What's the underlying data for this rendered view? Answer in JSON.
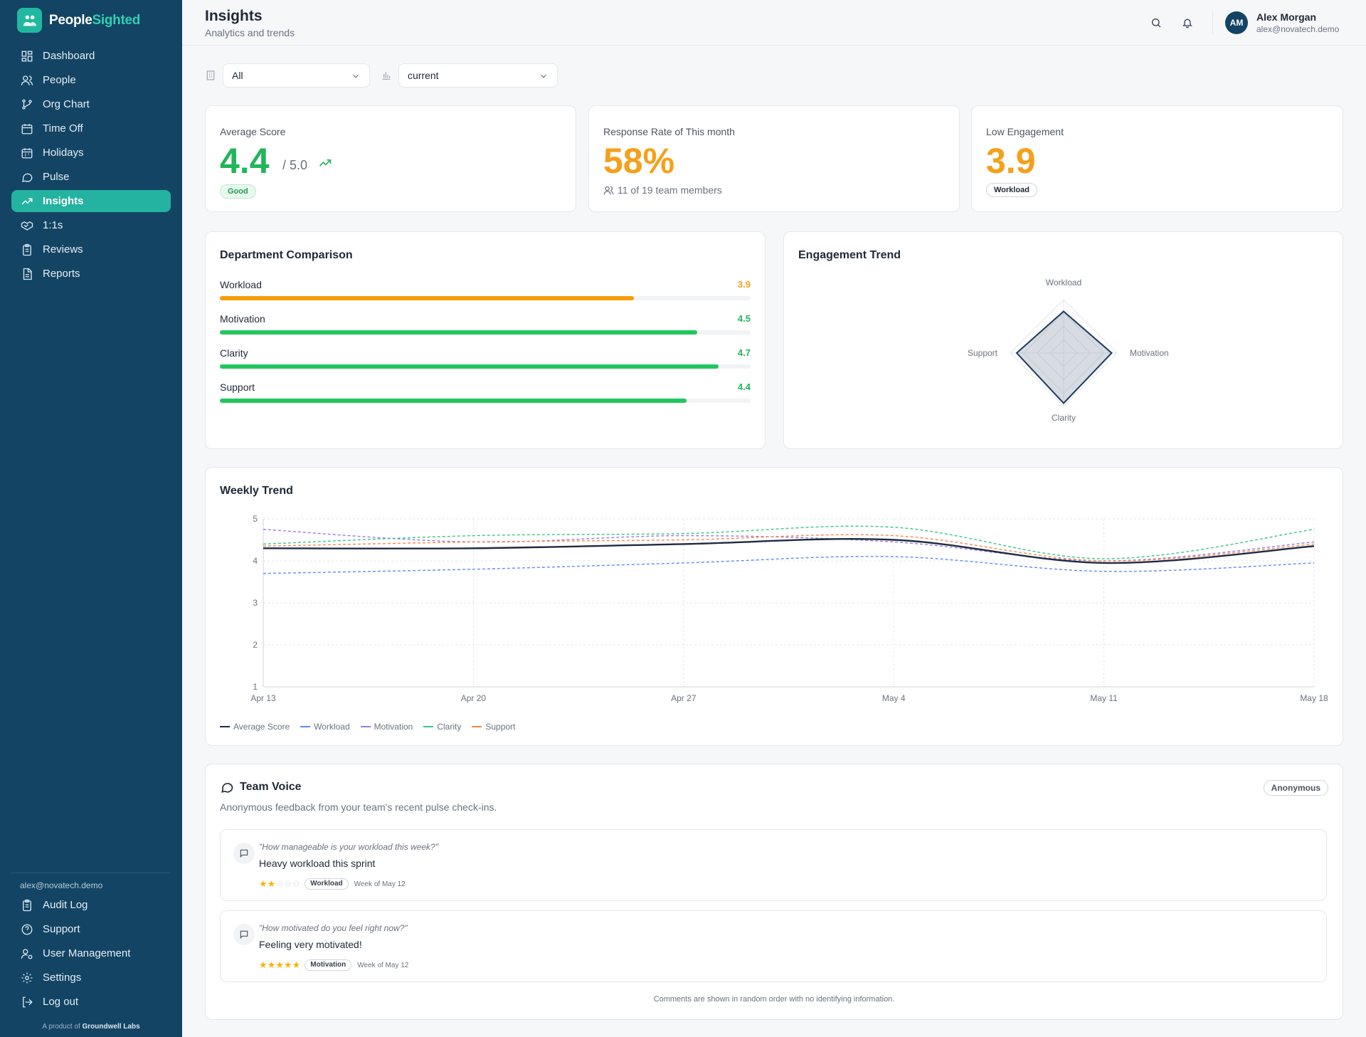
{
  "brand": {
    "name_a": "People",
    "name_b": "Sighted"
  },
  "colors": {
    "sidebar": "#134464",
    "accent": "#24b3a0",
    "green": "#22c55e",
    "orange": "#f59e0b",
    "navy": "#1e2a44"
  },
  "nav": {
    "items": [
      {
        "label": "Dashboard",
        "icon": "dashboard-icon"
      },
      {
        "label": "People",
        "icon": "people-icon"
      },
      {
        "label": "Org Chart",
        "icon": "org-chart-icon"
      },
      {
        "label": "Time Off",
        "icon": "calendar-icon"
      },
      {
        "label": "Holidays",
        "icon": "calendar-icon"
      },
      {
        "label": "Pulse",
        "icon": "chat-icon"
      },
      {
        "label": "Insights",
        "icon": "trending-up-icon",
        "active": true
      },
      {
        "label": "1:1s",
        "icon": "handshake-icon"
      },
      {
        "label": "Reviews",
        "icon": "clipboard-icon"
      },
      {
        "label": "Reports",
        "icon": "report-icon"
      }
    ],
    "account_email": "alex@novatech.demo",
    "bottom": [
      {
        "label": "Audit Log",
        "icon": "clipboard-icon"
      },
      {
        "label": "Support",
        "icon": "help-icon"
      },
      {
        "label": "User Management",
        "icon": "user-gear-icon"
      },
      {
        "label": "Settings",
        "icon": "gear-icon"
      },
      {
        "label": "Log out",
        "icon": "logout-icon"
      }
    ],
    "product_note_prefix": "A product of",
    "product_note_company": "Groundwell Labs"
  },
  "header": {
    "title": "Insights",
    "subtitle": "Analytics and trends",
    "user": {
      "initials": "AM",
      "name": "Alex Morgan",
      "email": "alex@novatech.demo"
    }
  },
  "filters": {
    "department": "All",
    "period": "current"
  },
  "kpis": {
    "average": {
      "label": "Average Score",
      "value": "4.4",
      "suffix": "/ 5.0",
      "badge": "Good"
    },
    "response": {
      "label": "Response Rate of This month",
      "value": "58%",
      "detail": "11 of 19 team members"
    },
    "low": {
      "label": "Low Engagement",
      "value": "3.9",
      "badge": "Workload"
    }
  },
  "department_comparison": {
    "title": "Department Comparison",
    "items": [
      {
        "label": "Workload",
        "value": "3.9",
        "score": 3.9,
        "color": "#f59e0b"
      },
      {
        "label": "Motivation",
        "value": "4.5",
        "score": 4.5,
        "color": "#22c55e"
      },
      {
        "label": "Clarity",
        "value": "4.7",
        "score": 4.7,
        "color": "#22c55e"
      },
      {
        "label": "Support",
        "value": "4.4",
        "score": 4.4,
        "color": "#22c55e"
      }
    ]
  },
  "engagement_trend": {
    "title": "Engagement Trend",
    "axes": [
      "Workload",
      "Motivation",
      "Clarity",
      "Support"
    ],
    "values": [
      3.9,
      4.5,
      4.7,
      4.4
    ],
    "max": 5
  },
  "weekly_trend": {
    "title": "Weekly Trend"
  },
  "chart_data": {
    "type": "line",
    "title": "Weekly Trend",
    "x": [
      "Apr 13",
      "Apr 20",
      "Apr 27",
      "May 4",
      "May 11",
      "May 18"
    ],
    "yticks": [
      "1",
      "2",
      "3",
      "4",
      "5"
    ],
    "ylim": [
      1,
      5
    ],
    "grid": true,
    "legend": "bottom-left",
    "series": [
      {
        "name": "Average Score",
        "values": [
          4.3,
          4.3,
          4.4,
          4.5,
          3.95,
          4.35
        ],
        "color": "#1e2a44",
        "dashed": false
      },
      {
        "name": "Workload",
        "values": [
          3.7,
          3.8,
          3.95,
          4.1,
          3.75,
          3.95
        ],
        "color": "#5b8def",
        "dashed": true
      },
      {
        "name": "Motivation",
        "values": [
          4.75,
          4.45,
          4.6,
          4.45,
          4.0,
          4.45
        ],
        "color": "#9b7be0",
        "dashed": true
      },
      {
        "name": "Clarity",
        "values": [
          4.4,
          4.6,
          4.65,
          4.8,
          4.05,
          4.75
        ],
        "color": "#34c88a",
        "dashed": true
      },
      {
        "name": "Support",
        "values": [
          4.35,
          4.45,
          4.5,
          4.6,
          4.0,
          4.4
        ],
        "color": "#f5894a",
        "dashed": true
      }
    ]
  },
  "team_voice": {
    "title": "Team Voice",
    "subtitle": "Anonymous feedback from your team's recent pulse check-ins.",
    "badge": "Anonymous",
    "comments": [
      {
        "question": "\"How manageable is your workload this week?\"",
        "text": "Heavy workload this sprint",
        "stars_on": "★★",
        "stars_off": "☆☆☆",
        "rating": 2,
        "tag": "Workload",
        "week": "Week of May 12"
      },
      {
        "question": "\"How motivated do you feel right now?\"",
        "text": "Feeling very motivated!",
        "stars_on": "★★★★★",
        "stars_off": "",
        "rating": 5,
        "tag": "Motivation",
        "week": "Week of May 12"
      }
    ],
    "footer": "Comments are shown in random order with no identifying information."
  }
}
